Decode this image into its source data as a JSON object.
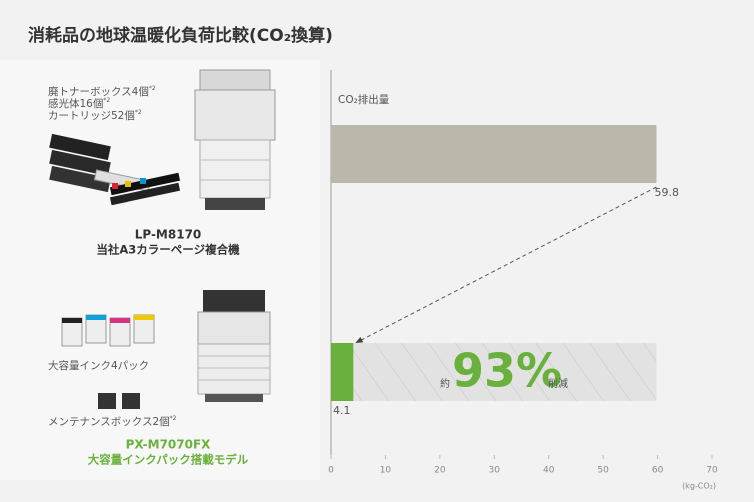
{
  "title": "消耗品の地球温暖化負荷比較(CO₂換算)",
  "products": [
    {
      "items": [
        {
          "text": "廃トナーボックス4個",
          "note": "*2"
        },
        {
          "text": "感光体16個",
          "note": "*2"
        },
        {
          "text": "カートリッジ52個",
          "note": "*2"
        }
      ],
      "description": "当社A3カラーページ複合機"
    },
    {
      "items": [
        {
          "text": "大容量インク4パック"
        },
        {
          "text": "メンテナンスボックス2個",
          "note": "*2"
        }
      ],
      "description": "大容量インクパック搭載モデル"
    }
  ],
  "chart_data": {
    "type": "hbar",
    "axis_label": "CO₂排出量",
    "x_unit": "(kg-CO₂)",
    "categories": [
      "LP-M8170",
      "PX-M7070FX"
    ],
    "values": [
      59.8,
      4.1
    ],
    "colors": [
      "#bcb7ab",
      "#69b13c"
    ],
    "xlim": [
      0,
      70
    ],
    "xticks": [
      0,
      10,
      20,
      30,
      40,
      50,
      60,
      70
    ],
    "annotation": {
      "prefix": "約",
      "text": "93%",
      "suffix": "削減"
    }
  }
}
